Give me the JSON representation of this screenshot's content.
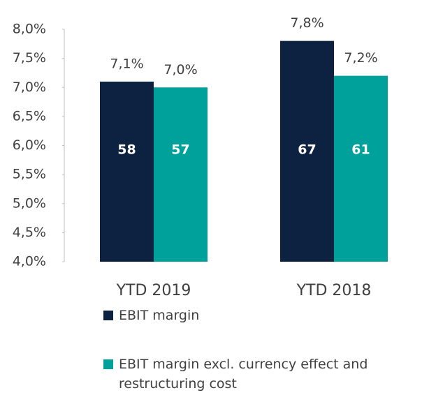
{
  "chart_data": {
    "type": "bar",
    "categories": [
      "YTD 2019",
      "YTD 2018"
    ],
    "series": [
      {
        "name": "EBIT margin",
        "color": "#0d2240",
        "values": [
          7.1,
          7.8
        ],
        "value_labels": [
          "7,1%",
          "7,8%"
        ],
        "amounts": [
          58,
          67
        ]
      },
      {
        "name": "EBIT margin excl. currency effect and restructuring cost",
        "color": "#00a19a",
        "values": [
          7.0,
          7.2
        ],
        "value_labels": [
          "7,0%",
          "7,2%"
        ],
        "amounts": [
          57,
          61
        ]
      }
    ],
    "ylim": [
      4.0,
      8.0
    ],
    "yticks": [
      {
        "value": 4.0,
        "label": "4,0%"
      },
      {
        "value": 4.5,
        "label": "4,5%"
      },
      {
        "value": 5.0,
        "label": "5,0%"
      },
      {
        "value": 5.5,
        "label": "5,5%"
      },
      {
        "value": 6.0,
        "label": "6,0%"
      },
      {
        "value": 6.5,
        "label": "6,5%"
      },
      {
        "value": 7.0,
        "label": "7,0%"
      },
      {
        "value": 7.5,
        "label": "7,5%"
      },
      {
        "value": 8.0,
        "label": "8,0%"
      }
    ],
    "grid": false,
    "legend": "bottom"
  }
}
